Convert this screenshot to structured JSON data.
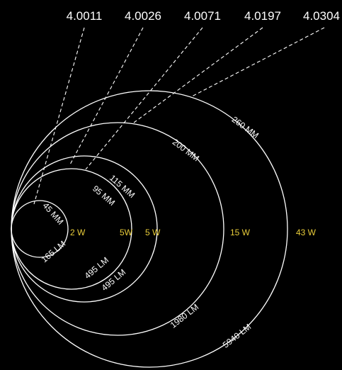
{
  "leader_values": [
    "4.0011",
    "4.0026",
    "4.0071",
    "4.0197",
    "4.0304"
  ],
  "mm_labels": [
    "45 MM",
    "95 MM",
    "115 MM",
    "200 MM",
    "260 MM"
  ],
  "lm_labels": [
    "165 LM",
    "495 LM",
    "495 LM",
    "1980 LM",
    "5940 LM"
  ],
  "watt_labels": [
    "2 W",
    "5W",
    "5 W",
    "15 W",
    "43 W"
  ],
  "colors": {
    "background": "#000000",
    "line": "#ffffff",
    "watt": "#e8cc3a"
  }
}
